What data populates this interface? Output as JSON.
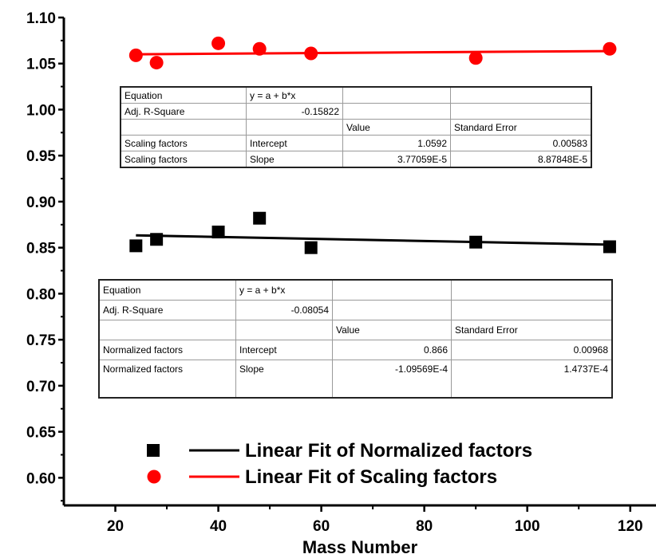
{
  "chart_data": {
    "type": "scatter",
    "title": "",
    "xlabel": "Mass Number",
    "ylabel": "",
    "xlim": [
      10,
      125
    ],
    "ylim": [
      0.57,
      1.1
    ],
    "x_ticks": [
      20,
      40,
      60,
      80,
      100,
      120
    ],
    "y_ticks": [
      0.6,
      0.65,
      0.7,
      0.75,
      0.8,
      0.85,
      0.9,
      0.95,
      1.0,
      1.05,
      1.1
    ],
    "x_tick_labels": [
      "20",
      "40",
      "60",
      "80",
      "100",
      "120"
    ],
    "y_tick_labels": [
      "0.60",
      "0.65",
      "0.70",
      "0.75",
      "0.80",
      "0.85",
      "0.90",
      "0.95",
      "1.00",
      "1.05",
      "1.10"
    ],
    "grid": false,
    "legend_position": "bottom-center",
    "series": [
      {
        "name": "Normalized factors",
        "marker": "square",
        "color": "#000000",
        "x": [
          24,
          28,
          40,
          48,
          58,
          90,
          116
        ],
        "y": [
          0.852,
          0.859,
          0.867,
          0.882,
          0.85,
          0.856,
          0.851
        ],
        "fit": {
          "label": "Linear Fit of Normalized factors",
          "intercept": 0.866,
          "slope": -0.000109569,
          "x_range": [
            24,
            116
          ]
        }
      },
      {
        "name": "Scaling factors",
        "marker": "circle",
        "color": "#ff0000",
        "x": [
          24,
          28,
          40,
          48,
          58,
          90,
          116
        ],
        "y": [
          1.059,
          1.051,
          1.072,
          1.066,
          1.061,
          1.056,
          1.066
        ],
        "fit": {
          "label": "Linear Fit of Scaling factors",
          "intercept": 1.0592,
          "slope": 3.77059e-05,
          "x_range": [
            24,
            116
          ]
        }
      }
    ]
  },
  "tables": {
    "scaling": {
      "equation_label": "Equation",
      "equation": "y = a + b*x",
      "adj_r_label": "Adj. R-Square",
      "adj_r_value": "-0.15822",
      "value_header": "Value",
      "error_header": "Standard Error",
      "rows": [
        {
          "name": "Scaling factors",
          "param": "Intercept",
          "value": "1.0592",
          "error": "0.00583"
        },
        {
          "name": "Scaling factors",
          "param": "Slope",
          "value": "3.77059E-5",
          "error": "8.87848E-5"
        }
      ]
    },
    "normalized": {
      "equation_label": "Equation",
      "equation": "y = a + b*x",
      "adj_r_label": "Adj. R-Square",
      "adj_r_value": "-0.08054",
      "value_header": "Value",
      "error_header": "Standard Error",
      "rows": [
        {
          "name": "Normalized factors",
          "param": "Intercept",
          "value": "0.866",
          "error": "0.00968"
        },
        {
          "name": "Normalized factors",
          "param": "Slope",
          "value": "-1.09569E-4",
          "error": "1.4737E-4"
        }
      ]
    }
  }
}
